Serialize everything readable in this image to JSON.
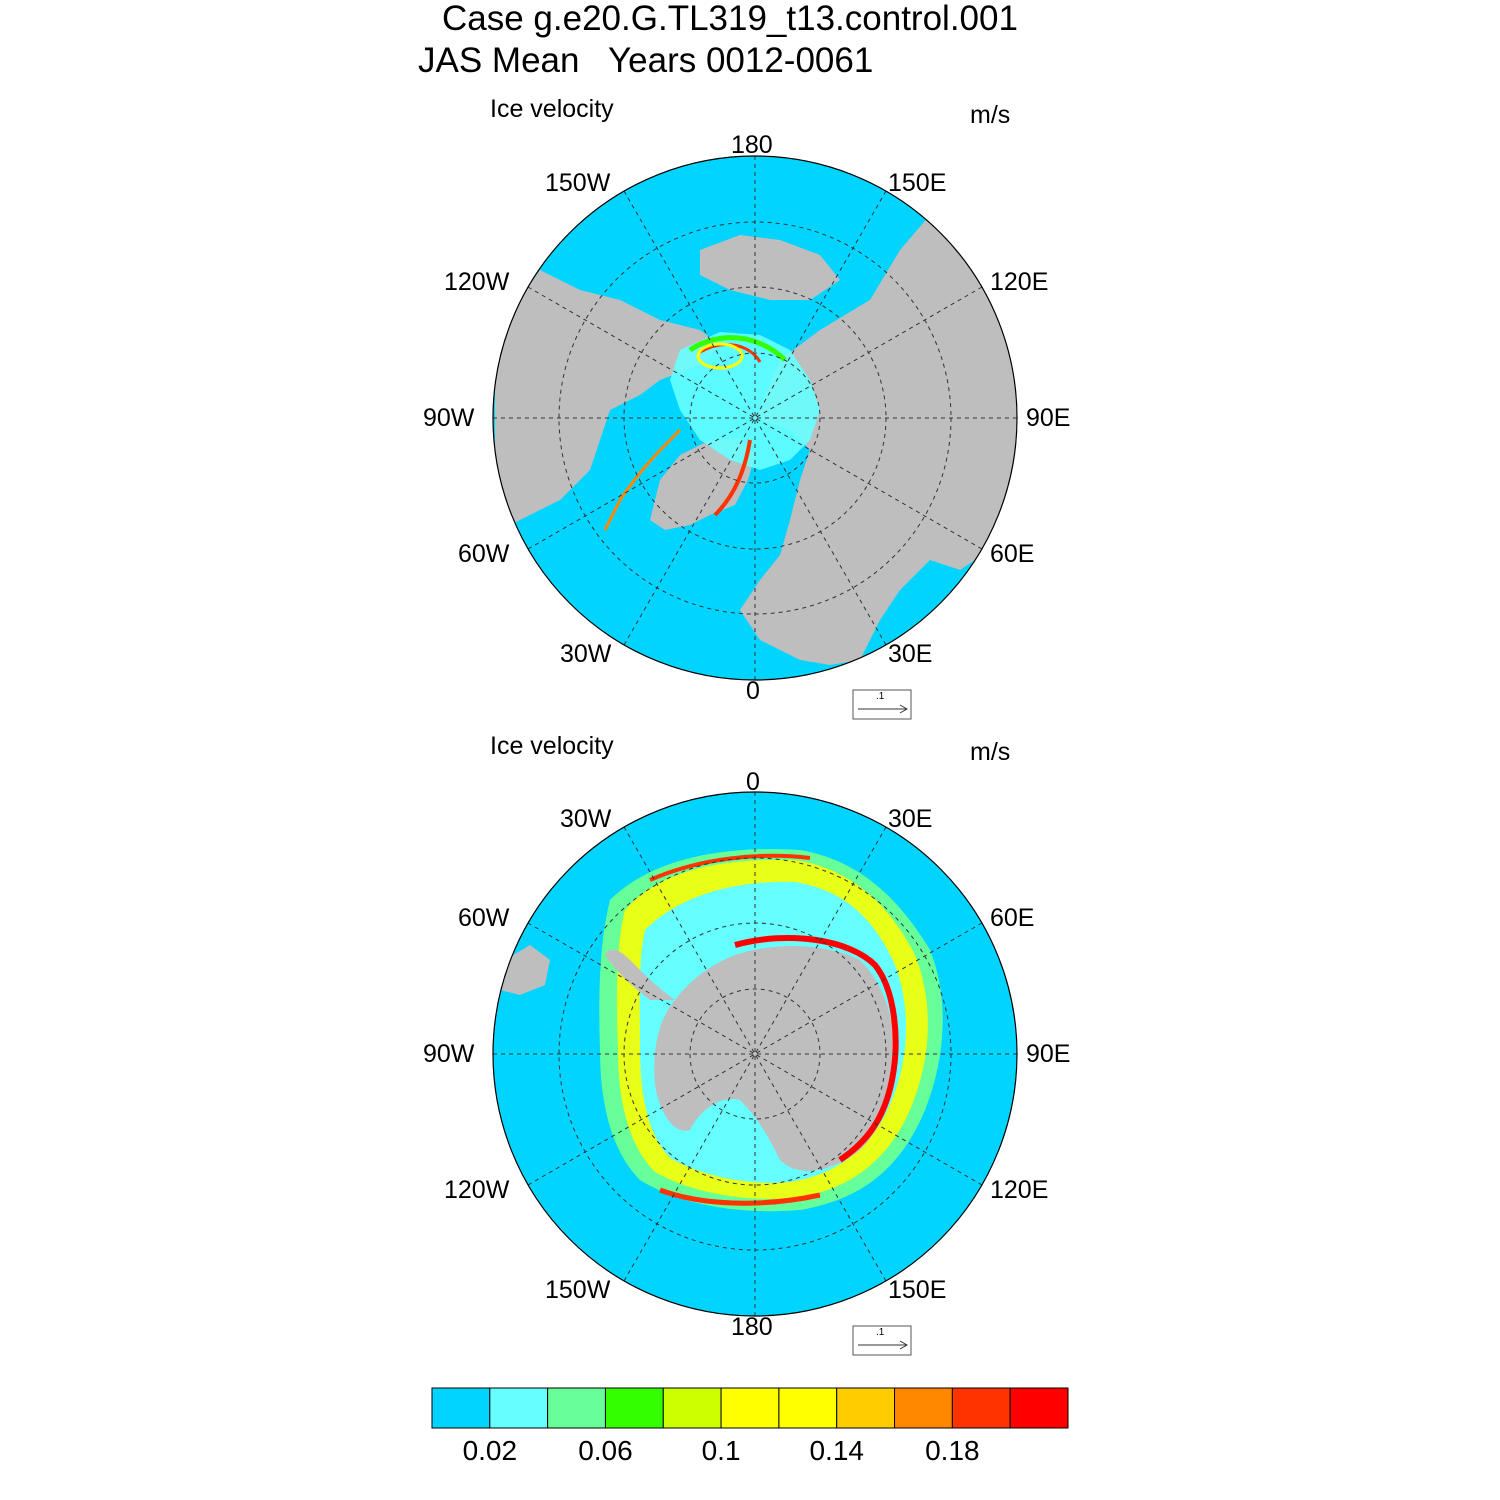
{
  "header": {
    "title_line1": "Case g.e20.G.TL319_t13.control.001",
    "title_line2": "JAS Mean   Years 0012-0061"
  },
  "panels": [
    {
      "id": "nh",
      "left_string": "Ice velocity",
      "right_string": "m/s",
      "lon_labels": [
        "180",
        "150E",
        "120E",
        "90E",
        "60E",
        "30E",
        "0",
        "30W",
        "60W",
        "90W",
        "120W",
        "150W"
      ],
      "reference_vector_label": ".1"
    },
    {
      "id": "sh",
      "left_string": "Ice velocity",
      "right_string": "m/s",
      "lon_labels": [
        "0",
        "30E",
        "60E",
        "90E",
        "120E",
        "150E",
        "180",
        "150W",
        "120W",
        "90W",
        "60W",
        "30W"
      ],
      "reference_vector_label": ".1"
    }
  ],
  "colorbar": {
    "colors": [
      "#00d4ff",
      "#66ffff",
      "#66ff99",
      "#33ff00",
      "#ccff00",
      "#ffff00",
      "#ffff00",
      "#ffcc00",
      "#ff8800",
      "#ff3300",
      "#ff0000"
    ],
    "tick_labels": [
      "0.02",
      "0.06",
      "0.1",
      "0.14",
      "0.18"
    ],
    "tick_boundaries": [
      1,
      3,
      5,
      7,
      9
    ]
  },
  "palette": {
    "ocean": "#00d4ff",
    "land": "#bebebe",
    "grid": "#333333"
  }
}
